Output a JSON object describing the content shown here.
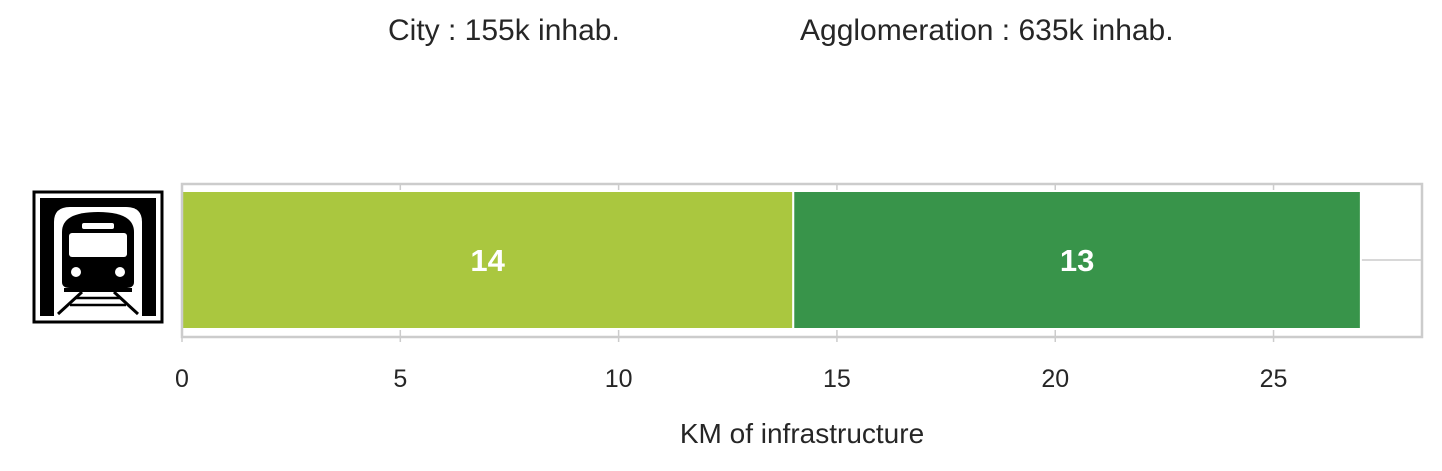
{
  "header": {
    "city": "City : 155k inhab.",
    "agglomeration": "Agglomeration : 635k inhab."
  },
  "icon": "metro-train-icon",
  "chart_data": {
    "type": "bar",
    "orientation": "horizontal",
    "stacked": true,
    "categories": [
      ""
    ],
    "series": [
      {
        "values": [
          14
        ],
        "color": "#aac73f"
      },
      {
        "values": [
          13
        ],
        "color": "#38944a"
      }
    ],
    "bar_labels": [
      "14",
      "13"
    ],
    "xlabel": "KM of infrastructure",
    "ylabel": "",
    "xlim": [
      0,
      28.4
    ],
    "xticks": [
      0,
      5,
      10,
      15,
      20,
      25
    ],
    "xtick_labels": [
      "0",
      "5",
      "10",
      "15",
      "20",
      "25"
    ],
    "grid": true
  }
}
